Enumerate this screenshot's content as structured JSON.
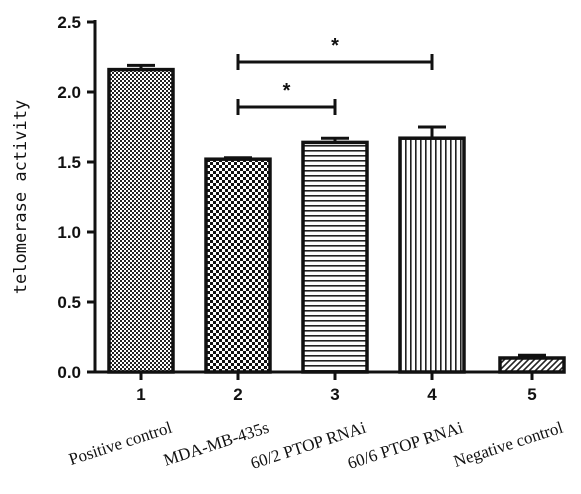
{
  "chart_data": {
    "type": "bar",
    "categories": [
      "1",
      "2",
      "3",
      "4",
      "5"
    ],
    "category_names": [
      "Positive control",
      "MDA-MB-435s",
      "60/2 PTOP RNAi",
      "60/6 PTOP RNAi",
      "Negative control"
    ],
    "values": [
      2.16,
      1.52,
      1.64,
      1.67,
      0.1
    ],
    "errors": [
      0.03,
      0.01,
      0.03,
      0.08,
      0.02
    ],
    "patterns": [
      "fine-checker",
      "coarse-checker",
      "horizontal-lines",
      "vertical-lines",
      "diagonal-lines"
    ],
    "title": "",
    "xlabel": "",
    "ylabel": "telomerase activity",
    "ylim": [
      0,
      2.5
    ],
    "yticks": [
      "0.0",
      "0.5",
      "1.0",
      "1.5",
      "2.0",
      "2.5"
    ],
    "significance": [
      {
        "from": 2,
        "to": 3,
        "label": "*"
      },
      {
        "from": 2,
        "to": 4,
        "label": "*"
      }
    ],
    "grid": false
  }
}
